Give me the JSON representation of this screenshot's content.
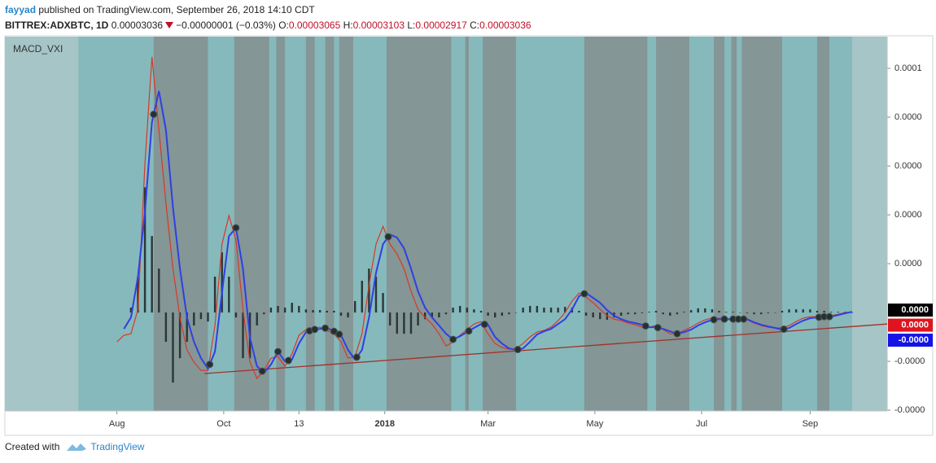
{
  "header": {
    "author": "fayyad",
    "published": "published on TradingView.com, September 26, 2018 14:10 CDT",
    "symbol": "BITTREX:ADXBTC, 1D",
    "price": "0.00003036",
    "change": "−0.00000001 (−0.03%)",
    "ohlc": [
      {
        "key": "O:",
        "value": "0.00003065"
      },
      {
        "key": "H:",
        "value": "0.00003103"
      },
      {
        "key": "L:",
        "value": "0.00002917"
      },
      {
        "key": "C:",
        "value": "0.00003036"
      }
    ]
  },
  "chart_data": {
    "type": "macd",
    "title": "MACD_VXI",
    "xlim": [
      -64,
      440
    ],
    "ylim": [
      -4.03e-05,
      0.000113
    ],
    "xticks": [
      {
        "value": 0,
        "label": "Aug"
      },
      {
        "value": 61,
        "label": "Oct"
      },
      {
        "value": 104,
        "label": "13"
      },
      {
        "value": 153,
        "label": "2018"
      },
      {
        "value": 212,
        "label": "Mar"
      },
      {
        "value": 273,
        "label": "May"
      },
      {
        "value": 334,
        "label": "Jul"
      },
      {
        "value": 396,
        "label": "Sep"
      }
    ],
    "yticks": [
      {
        "value": 0.0001,
        "label": "0.0001"
      },
      {
        "value": 8e-05,
        "label": "0.0000"
      },
      {
        "value": 6e-05,
        "label": "0.0000"
      },
      {
        "value": 4e-05,
        "label": "0.0000"
      },
      {
        "value": 2e-05,
        "label": "0.0000"
      },
      {
        "value": -2e-05,
        "label": "-0.0000"
      },
      {
        "value": -4e-05,
        "label": "-0.0000"
      }
    ],
    "active_range": [
      -22,
      420
    ],
    "shaded_ranges": [
      [
        21,
        52
      ],
      [
        67,
        87
      ],
      [
        91,
        96
      ],
      [
        108,
        113
      ],
      [
        119,
        124
      ],
      [
        127,
        135
      ],
      [
        154,
        191
      ],
      [
        199,
        201
      ],
      [
        209,
        228
      ],
      [
        267,
        303
      ],
      [
        308,
        327
      ],
      [
        341,
        347
      ],
      [
        351,
        354
      ],
      [
        357,
        380
      ],
      [
        400,
        407
      ]
    ],
    "x": [
      -4,
      0,
      4,
      8,
      12,
      16,
      20,
      24,
      28,
      32,
      36,
      40,
      44,
      48,
      52,
      56,
      60,
      64,
      68,
      72,
      76,
      80,
      84,
      88,
      92,
      96,
      100,
      104,
      108,
      112,
      116,
      120,
      124,
      128,
      132,
      136,
      140,
      144,
      148,
      152,
      156,
      160,
      164,
      168,
      172,
      176,
      180,
      184,
      188,
      192,
      196,
      200,
      204,
      208,
      212,
      216,
      220,
      224,
      228,
      232,
      236,
      240,
      244,
      248,
      252,
      256,
      260,
      264,
      268,
      272,
      276,
      280,
      284,
      288,
      292,
      296,
      300,
      304,
      308,
      312,
      316,
      320,
      324,
      328,
      332,
      336,
      340,
      344,
      348,
      352,
      356,
      360,
      364,
      368,
      372,
      376,
      380,
      384,
      388,
      392,
      396,
      400,
      404,
      408,
      412,
      416,
      420
    ],
    "series": [
      {
        "style": "histogram",
        "color": "#2b3636",
        "values": [
          null,
          null,
          null,
          2e-06,
          1.47e-05,
          5.13e-05,
          3.13e-05,
          1.8e-05,
          -1.2e-05,
          -2.87e-05,
          -1.87e-05,
          -1.2e-05,
          -5.3e-06,
          -2.7e-06,
          -3.7e-06,
          1.47e-05,
          2.47e-05,
          1.47e-05,
          -2e-06,
          -1.87e-05,
          -1.87e-05,
          -5.3e-06,
          -7e-07,
          2e-06,
          2.7e-06,
          2e-06,
          4e-06,
          2.7e-06,
          1.3e-06,
          1e-06,
          1e-06,
          7e-07,
          7e-07,
          -1.3e-06,
          -2e-06,
          4.7e-06,
          1.3e-05,
          1.8e-05,
          1.47e-05,
          8e-06,
          -5.3e-06,
          -8.7e-06,
          -8.7e-06,
          -8.7e-06,
          -5.3e-06,
          -2.7e-06,
          -2e-06,
          -2e-06,
          -7e-07,
          2e-06,
          2.7e-06,
          2e-06,
          1.3e-06,
          7e-07,
          -1.3e-06,
          -2e-06,
          -1.3e-06,
          -7e-07,
          0,
          2e-06,
          2.7e-06,
          2.7e-06,
          2e-06,
          2e-06,
          2e-06,
          2.3e-06,
          2e-06,
          7e-07,
          -1.3e-06,
          -2e-06,
          -2.7e-06,
          -3e-06,
          -2e-06,
          -1.3e-06,
          -7e-07,
          -7e-07,
          -3e-07,
          3e-07,
          7e-07,
          -7e-07,
          -1.3e-06,
          -7e-07,
          3e-07,
          1e-06,
          1.7e-06,
          1.7e-06,
          1.3e-06,
          7e-07,
          3e-07,
          3e-07,
          0,
          -3e-07,
          -7e-07,
          -7e-07,
          -3e-07,
          0,
          7e-07,
          1.3e-06,
          1.3e-06,
          1.3e-06,
          1.3e-06,
          7e-07,
          7e-07,
          3e-07,
          3e-07,
          3e-07,
          0
        ]
      },
      {
        "style": "line",
        "color": "#d6392a",
        "values": [
          null,
          -1.2e-05,
          -9.3e-06,
          -8.7e-06,
          1.3e-06,
          6.13e-05,
          0.0001047,
          7.47e-05,
          4.47e-05,
          1.8e-05,
          -2e-06,
          -1.53e-05,
          -2.03e-05,
          -2.37e-05,
          -2.37e-05,
          -5.3e-06,
          2.8e-05,
          3.97e-05,
          2.97e-05,
          1.3e-06,
          -2.03e-05,
          -2.7e-05,
          -2.37e-05,
          -1.87e-05,
          -1.8e-05,
          -2.2e-05,
          -1.7e-05,
          -9.3e-06,
          -7e-06,
          -6.7e-06,
          -6e-06,
          -7.3e-06,
          -8.7e-06,
          -1.2e-05,
          -1.87e-05,
          -1.8e-05,
          -8.7e-06,
          1.13e-05,
          2.8e-05,
          3.53e-05,
          2.8e-05,
          2.4e-05,
          1.8e-05,
          8.7e-06,
          1.3e-06,
          -2e-06,
          -4.7e-06,
          -8.7e-06,
          -1.37e-05,
          -1.2e-05,
          -9.3e-06,
          -7e-06,
          -4.7e-06,
          -3.7e-06,
          -8.7e-06,
          -1.27e-05,
          -1.43e-05,
          -1.5e-05,
          -1.47e-05,
          -1.27e-05,
          -1e-05,
          -8e-06,
          -7.3e-06,
          -6e-06,
          -3.3e-06,
          0,
          4.7e-06,
          8e-06,
          6.3e-06,
          4e-06,
          1.3e-06,
          -1.3e-06,
          -2.7e-06,
          -3.3e-06,
          -4.3e-06,
          -5e-06,
          -6e-06,
          -6e-06,
          -5.3e-06,
          -7e-06,
          -8.7e-06,
          -8.7e-06,
          -7.3e-06,
          -6e-06,
          -4.3e-06,
          -3e-06,
          -2.3e-06,
          -2.3e-06,
          -2.7e-06,
          -3e-06,
          -2.7e-06,
          -3e-06,
          -4.3e-06,
          -5.3e-06,
          -6e-06,
          -6.3e-06,
          -6.3e-06,
          -5.3e-06,
          -3.7e-06,
          -2.3e-06,
          -1.7e-06,
          -1.7e-06,
          -1.7e-06,
          -1.3e-06,
          -7e-07,
          0,
          3e-07
        ]
      },
      {
        "style": "line",
        "color": "#2f3fe6",
        "values": [
          null,
          null,
          -6.7e-06,
          -2e-06,
          1.47e-05,
          4.13e-05,
          7.8e-05,
          9.07e-05,
          7.47e-05,
          4.3e-05,
          1.8e-05,
          -2e-06,
          -1.2e-05,
          -1.87e-05,
          -2.3e-05,
          -1.6e-05,
          8e-06,
          3.13e-05,
          3.47e-05,
          1.8e-05,
          -1.03e-05,
          -2.2e-05,
          -2.47e-05,
          -2.13e-05,
          -1.6e-05,
          -2e-05,
          -1.93e-05,
          -1.27e-05,
          -8e-06,
          -7e-06,
          -6.7e-06,
          -6.3e-06,
          -7.7e-06,
          -9.3e-06,
          -1.53e-05,
          -1.93e-05,
          -1.53e-05,
          -2e-06,
          1.63e-05,
          2.8e-05,
          3.2e-05,
          3.07e-05,
          2.63e-05,
          1.8e-05,
          8.7e-06,
          2e-06,
          -2e-06,
          -5.3e-06,
          -8.7e-06,
          -1.1e-05,
          -9.7e-06,
          -8e-06,
          -6.3e-06,
          -4.7e-06,
          -5e-06,
          -1e-05,
          -1.27e-05,
          -1.47e-05,
          -1.53e-05,
          -1.47e-05,
          -1.2e-05,
          -9e-06,
          -7.7e-06,
          -6.7e-06,
          -4.7e-06,
          -2.7e-06,
          1.3e-06,
          6.7e-06,
          8e-06,
          6e-06,
          4e-06,
          1e-06,
          -1.3e-06,
          -2.7e-06,
          -3.7e-06,
          -4.3e-06,
          -5e-06,
          -6e-06,
          -6e-06,
          -6.7e-06,
          -7.7e-06,
          -8.7e-06,
          -8e-06,
          -7e-06,
          -5.3e-06,
          -4e-06,
          -3e-06,
          -2.7e-06,
          -2.7e-06,
          -2.7e-06,
          -2.7e-06,
          -2.7e-06,
          -4e-06,
          -5e-06,
          -5.7e-06,
          -6.3e-06,
          -7e-06,
          -6.3e-06,
          -4.7e-06,
          -3.3e-06,
          -2.3e-06,
          -2e-06,
          -1.7e-06,
          -1.7e-06,
          -1e-06,
          -3e-07,
          3e-07
        ]
      }
    ],
    "markers": [
      21,
      53,
      68,
      83,
      92,
      98,
      110,
      113,
      119,
      124,
      127,
      137,
      155,
      192,
      201,
      210,
      229,
      267,
      302,
      309,
      320,
      341,
      347,
      352,
      355,
      358,
      381,
      401,
      404,
      407
    ],
    "trendline": {
      "color": "#a0302a",
      "x": [
        50,
        440
      ],
      "values": [
        -2.5e-05,
        -4.7e-06
      ]
    },
    "last_value_labels": [
      {
        "label": "0.0000",
        "color": "#000000"
      },
      {
        "label": "0.0000",
        "color": "#e0141e"
      },
      {
        "label": "-0.0000",
        "color": "#1414e6"
      }
    ]
  },
  "footer": {
    "text": "Created with",
    "brand": "TradingView"
  }
}
